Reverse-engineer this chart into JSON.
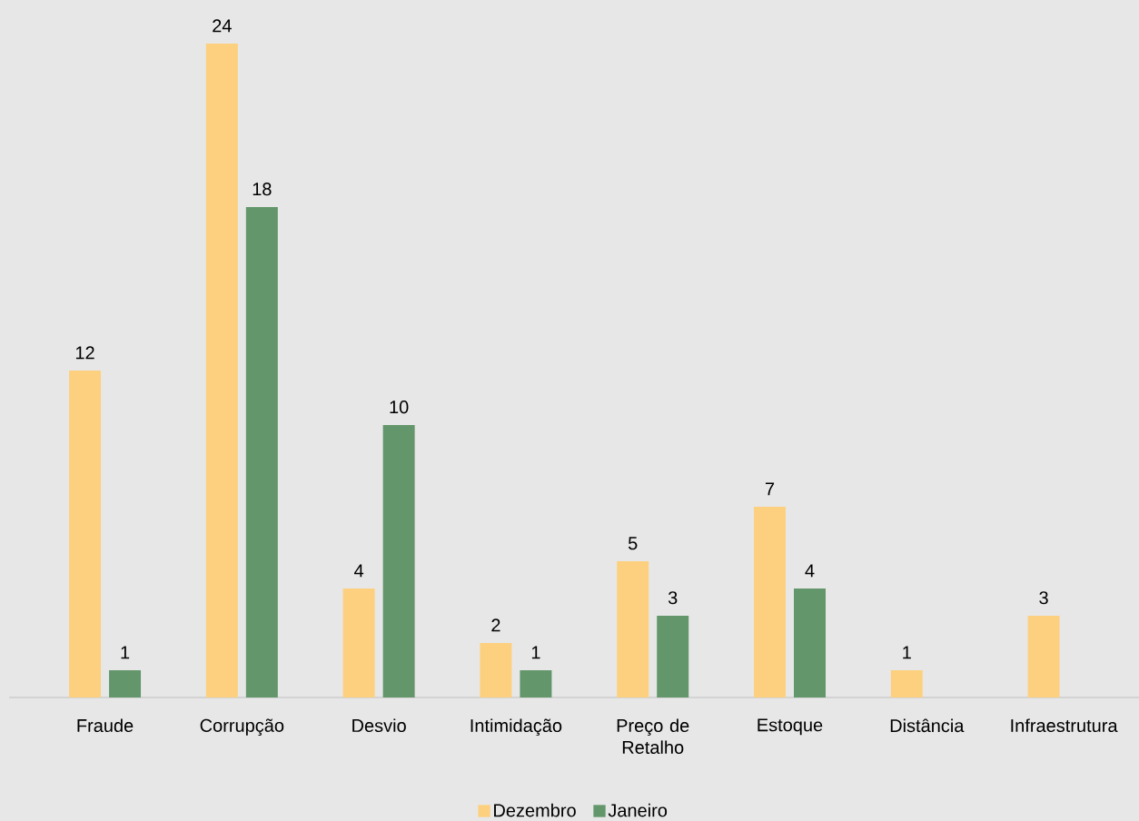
{
  "chart_data": {
    "type": "bar",
    "categories": [
      "Fraude",
      "Corrupção",
      "Desvio",
      "Intimidação",
      "Preço de Retalho",
      "Estoque",
      "Distância",
      "Infraestrutura"
    ],
    "series": [
      {
        "name": "Dezembro",
        "color": "#fdd07f",
        "values": [
          12,
          24,
          4,
          2,
          5,
          7,
          1,
          3
        ]
      },
      {
        "name": "Janeiro",
        "color": "#63976b",
        "values": [
          1,
          18,
          10,
          1,
          3,
          4,
          null,
          null
        ]
      }
    ],
    "data_labels": true,
    "legend": "bottom"
  }
}
